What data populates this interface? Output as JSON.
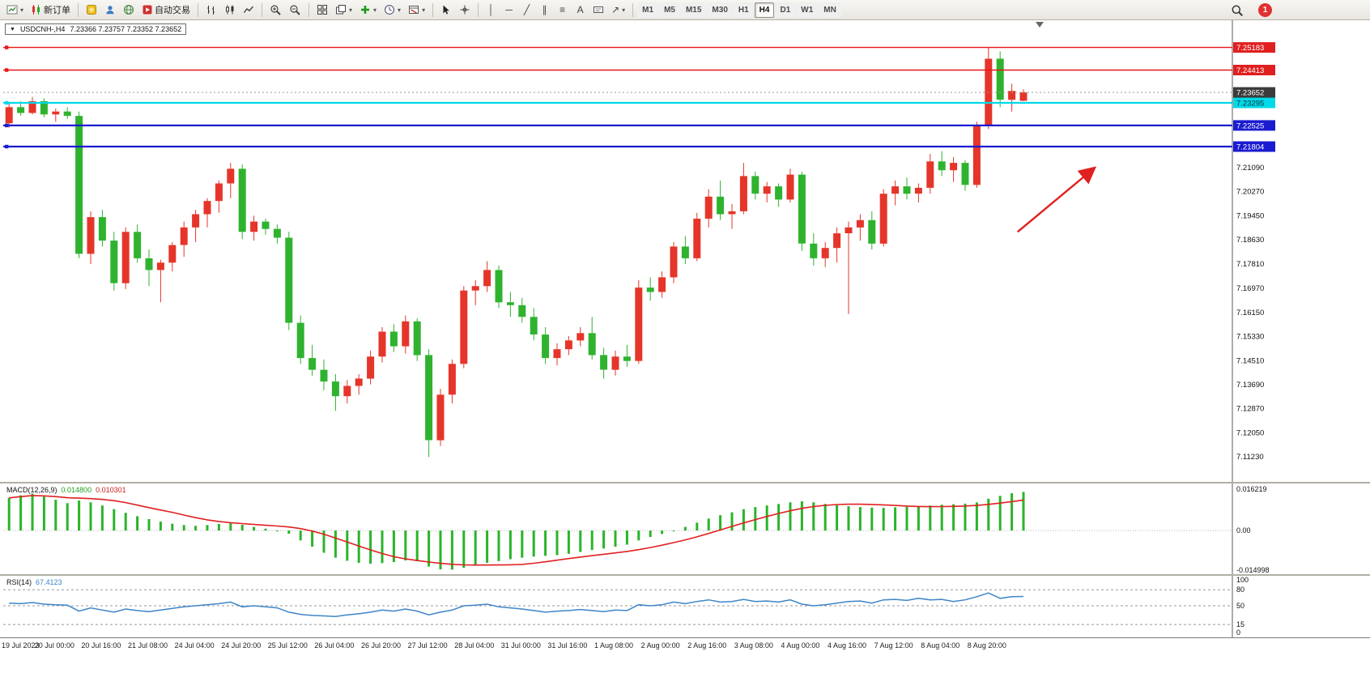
{
  "toolbar": {
    "new_order_label": "新订单",
    "autotrading_label": "自动交易",
    "timeframes": [
      "M1",
      "M5",
      "M15",
      "M30",
      "H1",
      "H4",
      "D1",
      "W1",
      "MN"
    ],
    "active_timeframe": "H4",
    "notification_count": "1",
    "icons": {
      "dropdown": "▾",
      "vertical_line": "│",
      "horizontal_line": "─",
      "trendline": "╱",
      "channel": "∥",
      "fibonacci": "≡",
      "text_tool": "A",
      "arrow_tool": "↗"
    }
  },
  "chart": {
    "header": {
      "collapse_icon": "▼",
      "symbol_period": "USDCNH-,H4",
      "ohlc": "7.23366 7.23757 7.23352 7.23652"
    },
    "current_price": {
      "label": "7.23652",
      "price": 7.23652,
      "badge": "#3c3c3c",
      "text_color": "#ffffff"
    },
    "hlines": [
      {
        "label": "7.25183",
        "price": 7.25183,
        "color": "#e81717",
        "badge": "#e02020",
        "text_color": "#ffffff",
        "width": 1.4
      },
      {
        "label": "7.24413",
        "price": 7.24413,
        "color": "#e81717",
        "badge": "#e02020",
        "text_color": "#ffffff",
        "width": 1.4
      },
      {
        "label": "7.23295",
        "price": 7.23295,
        "color": "#00d9e9",
        "badge": "#00d9e9",
        "text_color": "#00373b",
        "width": 2.2
      },
      {
        "label": "7.22525",
        "price": 7.22525,
        "color": "#1b1bd0",
        "badge": "#1b1bd0",
        "text_color": "#ffffff",
        "width": 2.2
      },
      {
        "label": "7.21804",
        "price": 7.21804,
        "color": "#1b1bd0",
        "badge": "#1b1bd0",
        "text_color": "#ffffff",
        "width": 2.2
      }
    ],
    "price_axis_labels": [
      "7.21090",
      "7.20270",
      "7.19450",
      "7.18630",
      "7.17810",
      "7.16970",
      "7.16150",
      "7.15330",
      "7.14510",
      "7.13690",
      "7.12870",
      "7.12050",
      "7.11230"
    ],
    "time_axis_labels": [
      "19 Jul 2023",
      "20 Jul 00:00",
      "20 Jul 16:00",
      "21 Jul 08:00",
      "24 Jul 04:00",
      "24 Jul 20:00",
      "25 Jul 12:00",
      "26 Jul 04:00",
      "26 Jul 20:00",
      "27 Jul 12:00",
      "28 Jul 04:00",
      "31 Jul 00:00",
      "31 Jul 16:00",
      "1 Aug 08:00",
      "2 Aug 00:00",
      "2 Aug 16:00",
      "3 Aug 08:00",
      "4 Aug 00:00",
      "4 Aug 16:00",
      "7 Aug 12:00",
      "8 Aug 04:00",
      "8 Aug 20:00"
    ]
  },
  "macd": {
    "label": "MACD(12,26,9)",
    "main_value": "0.014800",
    "signal_value": "0.010301",
    "axis_max_label": "0.016219",
    "axis_zero_label": "0.00",
    "axis_min_label": "-0.014998"
  },
  "rsi": {
    "label": "RSI(14)",
    "value": "67.4123",
    "levels": [
      80,
      50,
      15
    ],
    "axis_labels": [
      "100",
      "80",
      "50",
      "15",
      "0"
    ]
  },
  "chart_data": {
    "type": "candlestick",
    "symbol": "USDCNH",
    "timeframe": "H4",
    "up_color": "#e5352a",
    "down_color": "#2fb32f",
    "price_range": [
      7.106,
      7.26
    ],
    "macd_range": [
      -0.0155,
      0.0168
    ],
    "candles": [
      [
        7.226,
        7.233,
        7.2245,
        7.2315
      ],
      [
        7.2315,
        7.2335,
        7.2285,
        7.2295
      ],
      [
        7.2295,
        7.235,
        7.229,
        7.2335
      ],
      [
        7.2335,
        7.2345,
        7.228,
        7.229
      ],
      [
        7.229,
        7.231,
        7.2265,
        7.23
      ],
      [
        7.23,
        7.2315,
        7.2275,
        7.2285
      ],
      [
        7.2285,
        7.23,
        7.18,
        7.1815
      ],
      [
        7.1815,
        7.196,
        7.178,
        7.194
      ],
      [
        7.194,
        7.1965,
        7.184,
        7.186
      ],
      [
        7.186,
        7.189,
        7.169,
        7.1715
      ],
      [
        7.1715,
        7.1905,
        7.1695,
        7.189
      ],
      [
        7.189,
        7.1915,
        7.1785,
        7.18
      ],
      [
        7.18,
        7.183,
        7.1705,
        7.176
      ],
      [
        7.176,
        7.1795,
        7.165,
        7.1785
      ],
      [
        7.1785,
        7.1855,
        7.1755,
        7.1845
      ],
      [
        7.1845,
        7.1925,
        7.1805,
        7.1905
      ],
      [
        7.1905,
        7.1965,
        7.1855,
        7.195
      ],
      [
        7.195,
        7.2005,
        7.1905,
        7.1995
      ],
      [
        7.1995,
        7.2065,
        7.1955,
        7.2055
      ],
      [
        7.2055,
        7.2125,
        7.2005,
        7.2105
      ],
      [
        7.2105,
        7.212,
        7.1865,
        7.189
      ],
      [
        7.189,
        7.1945,
        7.186,
        7.1925
      ],
      [
        7.1925,
        7.1935,
        7.188,
        7.19
      ],
      [
        7.19,
        7.1915,
        7.185,
        7.187
      ],
      [
        7.187,
        7.189,
        7.1555,
        7.158
      ],
      [
        7.158,
        7.1605,
        7.144,
        7.146
      ],
      [
        7.146,
        7.1505,
        7.14,
        7.142
      ],
      [
        7.142,
        7.1455,
        7.135,
        7.138
      ],
      [
        7.138,
        7.1405,
        7.128,
        7.133
      ],
      [
        7.133,
        7.1385,
        7.1305,
        7.1365
      ],
      [
        7.1365,
        7.1405,
        7.1335,
        7.139
      ],
      [
        7.139,
        7.1485,
        7.137,
        7.1465
      ],
      [
        7.1465,
        7.1565,
        7.1445,
        7.155
      ],
      [
        7.155,
        7.1575,
        7.148,
        7.15
      ],
      [
        7.15,
        7.1605,
        7.1475,
        7.1585
      ],
      [
        7.1585,
        7.1595,
        7.145,
        7.147
      ],
      [
        7.147,
        7.149,
        7.1123,
        7.118
      ],
      [
        7.118,
        7.1355,
        7.116,
        7.1335
      ],
      [
        7.1335,
        7.1455,
        7.1305,
        7.144
      ],
      [
        7.144,
        7.1705,
        7.1425,
        7.169
      ],
      [
        7.169,
        7.1725,
        7.164,
        7.1705
      ],
      [
        7.1705,
        7.179,
        7.1685,
        7.176
      ],
      [
        7.176,
        7.1775,
        7.163,
        7.165
      ],
      [
        7.165,
        7.1685,
        7.16,
        7.164
      ],
      [
        7.164,
        7.1665,
        7.158,
        7.16
      ],
      [
        7.16,
        7.163,
        7.152,
        7.154
      ],
      [
        7.154,
        7.1565,
        7.144,
        7.146
      ],
      [
        7.146,
        7.151,
        7.1435,
        7.149
      ],
      [
        7.149,
        7.1535,
        7.147,
        7.152
      ],
      [
        7.152,
        7.1565,
        7.15,
        7.1545
      ],
      [
        7.1545,
        7.16,
        7.1455,
        7.147
      ],
      [
        7.147,
        7.1495,
        7.139,
        7.142
      ],
      [
        7.142,
        7.1485,
        7.14,
        7.1465
      ],
      [
        7.1465,
        7.1505,
        7.143,
        7.145
      ],
      [
        7.145,
        7.1725,
        7.144,
        7.17
      ],
      [
        7.17,
        7.1735,
        7.1655,
        7.1685
      ],
      [
        7.1685,
        7.1755,
        7.1665,
        7.1735
      ],
      [
        7.1735,
        7.1855,
        7.1715,
        7.184
      ],
      [
        7.184,
        7.1875,
        7.178,
        7.18
      ],
      [
        7.18,
        7.1955,
        7.179,
        7.1935
      ],
      [
        7.1935,
        7.2035,
        7.1905,
        7.201
      ],
      [
        7.201,
        7.2065,
        7.193,
        7.195
      ],
      [
        7.195,
        7.1985,
        7.19,
        7.196
      ],
      [
        7.196,
        7.2125,
        7.195,
        7.208
      ],
      [
        7.208,
        7.2095,
        7.2,
        7.202
      ],
      [
        7.202,
        7.206,
        7.199,
        7.2045
      ],
      [
        7.2045,
        7.2055,
        7.1975,
        7.2
      ],
      [
        7.2,
        7.2105,
        7.199,
        7.2085
      ],
      [
        7.2085,
        7.2095,
        7.1825,
        7.185
      ],
      [
        7.185,
        7.1885,
        7.1775,
        7.18
      ],
      [
        7.18,
        7.1855,
        7.177,
        7.1835
      ],
      [
        7.1835,
        7.1905,
        7.1785,
        7.1885
      ],
      [
        7.1885,
        7.1925,
        7.161,
        7.1905
      ],
      [
        7.1905,
        7.195,
        7.186,
        7.193
      ],
      [
        7.193,
        7.196,
        7.183,
        7.185
      ],
      [
        7.185,
        7.2035,
        7.184,
        7.202
      ],
      [
        7.202,
        7.2065,
        7.198,
        7.2045
      ],
      [
        7.2045,
        7.2075,
        7.2,
        7.202
      ],
      [
        7.202,
        7.2055,
        7.199,
        7.204
      ],
      [
        7.204,
        7.2155,
        7.202,
        7.213
      ],
      [
        7.213,
        7.2165,
        7.208,
        7.21
      ],
      [
        7.21,
        7.2145,
        7.206,
        7.2125
      ],
      [
        7.2125,
        7.2135,
        7.203,
        7.205
      ],
      [
        7.205,
        7.2265,
        7.204,
        7.225
      ],
      [
        7.225,
        7.2518,
        7.224,
        7.248
      ],
      [
        7.248,
        7.2505,
        7.2315,
        7.234
      ],
      [
        7.234,
        7.2395,
        7.23,
        7.237
      ],
      [
        7.23366,
        7.23757,
        7.23352,
        7.23652
      ]
    ],
    "macd_histogram": [
      0.0125,
      0.0135,
      0.0142,
      0.013,
      0.0118,
      0.0105,
      0.0115,
      0.0108,
      0.0096,
      0.0082,
      0.0068,
      0.0055,
      0.0044,
      0.0034,
      0.0026,
      0.0021,
      0.0018,
      0.0021,
      0.0025,
      0.0028,
      0.0022,
      0.0014,
      0.0007,
      -0.0001,
      -0.0012,
      -0.0038,
      -0.0062,
      -0.0085,
      -0.0104,
      -0.0116,
      -0.0124,
      -0.0127,
      -0.0125,
      -0.0121,
      -0.0115,
      -0.0118,
      -0.0138,
      -0.0149,
      -0.015,
      -0.0143,
      -0.0133,
      -0.0124,
      -0.0117,
      -0.011,
      -0.0104,
      -0.01,
      -0.0097,
      -0.0094,
      -0.0089,
      -0.0082,
      -0.0075,
      -0.0069,
      -0.0062,
      -0.0054,
      -0.0038,
      -0.0025,
      -0.0013,
      0.0,
      0.0014,
      0.003,
      0.0046,
      0.0059,
      0.007,
      0.0082,
      0.009,
      0.0096,
      0.0102,
      0.0108,
      0.0112,
      0.0108,
      0.0102,
      0.0097,
      0.0093,
      0.009,
      0.0088,
      0.0087,
      0.0089,
      0.0091,
      0.0093,
      0.0096,
      0.0099,
      0.0101,
      0.0103,
      0.0108,
      0.0122,
      0.0133,
      0.0143,
      0.0148
    ],
    "rsi_values": [
      55,
      54,
      56,
      53,
      52,
      51,
      40,
      46,
      42,
      38,
      44,
      41,
      39,
      42,
      45,
      48,
      50,
      52,
      54,
      57,
      48,
      50,
      48,
      46,
      38,
      34,
      32,
      31,
      30,
      33,
      35,
      38,
      42,
      40,
      44,
      40,
      33,
      38,
      42,
      50,
      51,
      53,
      48,
      46,
      44,
      41,
      38,
      40,
      41,
      43,
      41,
      39,
      42,
      41,
      52,
      50,
      52,
      57,
      54,
      58,
      61,
      57,
      58,
      62,
      58,
      59,
      57,
      61,
      53,
      50,
      52,
      55,
      58,
      59,
      55,
      61,
      62,
      60,
      64,
      61,
      62,
      58,
      61,
      67,
      74,
      64,
      67,
      67.41
    ],
    "annotation_arrow": {
      "color": "#e02020",
      "from_bar": 86.5,
      "from_price": 7.189,
      "to_bar": 93,
      "to_price": 7.2105
    }
  }
}
